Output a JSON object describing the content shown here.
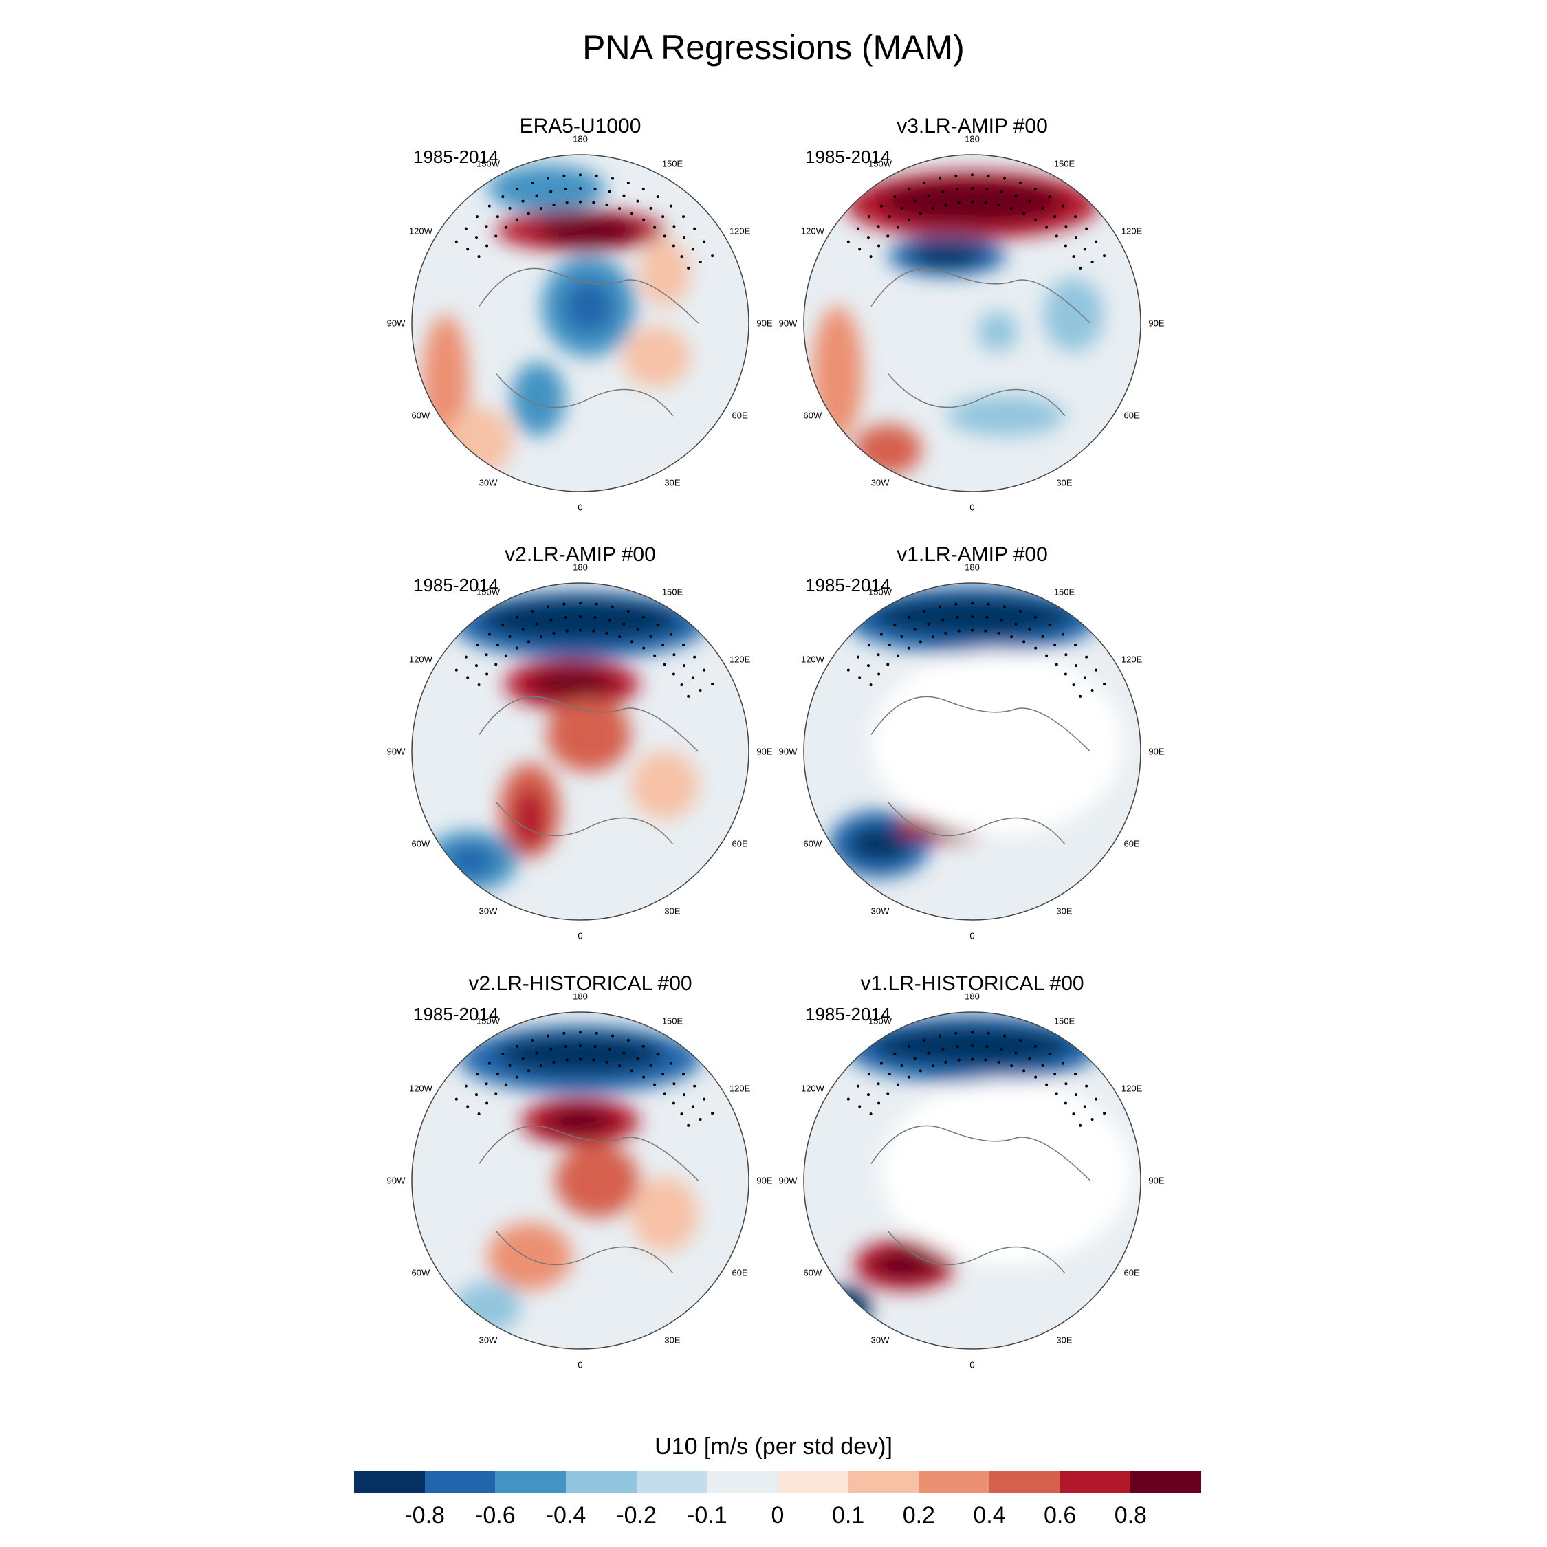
{
  "title": "PNA Regressions (MAM)",
  "panels": [
    {
      "title": "ERA5-U1000",
      "period": "1985-2014",
      "pattern": "era5"
    },
    {
      "title": "v3.LR-AMIP  #00",
      "period": "1985-2014",
      "pattern": "v3"
    },
    {
      "title": "v2.LR-AMIP  #00",
      "period": "1985-2014",
      "pattern": "v2amip"
    },
    {
      "title": "v1.LR-AMIP  #00",
      "period": "1985-2014",
      "pattern": "v1amip"
    },
    {
      "title": "v2.LR-HISTORICAL  #00",
      "period": "1985-2014",
      "pattern": "v2hist"
    },
    {
      "title": "v1.LR-HISTORICAL  #00",
      "period": "1985-2014",
      "pattern": "v1hist"
    }
  ],
  "longitude_labels": [
    "180",
    "150E",
    "120E",
    "90E",
    "60E",
    "30E",
    "0",
    "30W",
    "60W",
    "90W",
    "120W",
    "150W"
  ],
  "colorbar": {
    "title": "U10 [m/s (per std dev)]",
    "labels": [
      "-0.8",
      "-0.6",
      "-0.4",
      "-0.2",
      "-0.1",
      "0",
      "0.1",
      "0.2",
      "0.4",
      "0.6",
      "0.8"
    ],
    "colors": [
      "#053061",
      "#2166ac",
      "#4393c3",
      "#92c5de",
      "#c3ddea",
      "#e8eef2",
      "#fbe6dc",
      "#f7c1a6",
      "#ec9072",
      "#d6604d",
      "#b2182b",
      "#67001f"
    ]
  }
}
